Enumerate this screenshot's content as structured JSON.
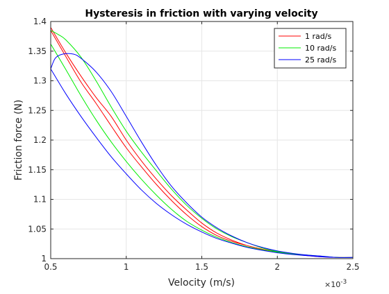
{
  "chart_data": {
    "type": "line",
    "title": "Hysteresis in friction with varying velocity",
    "xlabel": "Velocity (m/s)",
    "ylabel": "Friction force (N)",
    "x_exponent_label": "×10",
    "x_exponent_power": "-3",
    "xlim": [
      0.5,
      2.5
    ],
    "ylim": [
      1.0,
      1.4
    ],
    "x_ticks": [
      0.5,
      1,
      1.5,
      2,
      2.5
    ],
    "x_tick_labels": [
      "0.5",
      "1",
      "1.5",
      "2",
      "2.5"
    ],
    "y_ticks": [
      1.0,
      1.05,
      1.1,
      1.15,
      1.2,
      1.25,
      1.3,
      1.35,
      1.4
    ],
    "y_tick_labels": [
      "1",
      "1.05",
      "1.1",
      "1.15",
      "1.2",
      "1.25",
      "1.3",
      "1.35",
      "1.4"
    ],
    "grid": true,
    "legend_position": "top-right",
    "series": [
      {
        "name": "1 rad/s",
        "color": "#ff0000",
        "upper": {
          "x": [
            0.5,
            0.6,
            0.7,
            0.8,
            0.9,
            1.0,
            1.1,
            1.2,
            1.3,
            1.4,
            1.5,
            1.6,
            1.7,
            1.8,
            1.9,
            2.0,
            2.1,
            2.2,
            2.3,
            2.4,
            2.5
          ],
          "y": [
            1.39,
            1.347,
            1.308,
            1.272,
            1.24,
            1.2,
            1.165,
            1.134,
            1.106,
            1.082,
            1.06,
            1.043,
            1.031,
            1.022,
            1.016,
            1.011,
            1.008,
            1.005,
            1.003,
            1.002,
            1.002
          ]
        },
        "lower": {
          "x": [
            2.5,
            2.4,
            2.3,
            2.2,
            2.1,
            2.0,
            1.9,
            1.8,
            1.7,
            1.6,
            1.5,
            1.4,
            1.3,
            1.2,
            1.1,
            1.0,
            0.9,
            0.8,
            0.7,
            0.6,
            0.5
          ],
          "y": [
            1.002,
            1.002,
            1.003,
            1.005,
            1.008,
            1.011,
            1.016,
            1.022,
            1.029,
            1.039,
            1.054,
            1.074,
            1.098,
            1.125,
            1.155,
            1.187,
            1.224,
            1.262,
            1.298,
            1.341,
            1.385
          ]
        }
      },
      {
        "name": "10 rad/s",
        "color": "#00ee00",
        "upper": {
          "x": [
            0.5,
            0.55,
            0.6,
            0.7,
            0.8,
            0.9,
            1.0,
            1.1,
            1.2,
            1.3,
            1.4,
            1.5,
            1.6,
            1.7,
            1.8,
            1.9,
            2.0,
            2.1,
            2.2,
            2.3,
            2.4,
            2.5
          ],
          "y": [
            1.385,
            1.378,
            1.369,
            1.34,
            1.3,
            1.256,
            1.215,
            1.18,
            1.148,
            1.117,
            1.09,
            1.068,
            1.05,
            1.037,
            1.027,
            1.018,
            1.012,
            1.008,
            1.006,
            1.004,
            1.002,
            1.002
          ]
        },
        "lower": {
          "x": [
            2.5,
            2.4,
            2.3,
            2.2,
            2.1,
            2.0,
            1.9,
            1.8,
            1.7,
            1.6,
            1.5,
            1.4,
            1.3,
            1.2,
            1.1,
            1.0,
            0.9,
            0.8,
            0.7,
            0.6,
            0.5
          ],
          "y": [
            1.002,
            1.002,
            1.004,
            1.006,
            1.008,
            1.011,
            1.015,
            1.02,
            1.027,
            1.036,
            1.048,
            1.063,
            1.083,
            1.107,
            1.134,
            1.164,
            1.197,
            1.234,
            1.275,
            1.319,
            1.362
          ]
        }
      },
      {
        "name": "25 rad/s",
        "color": "#0000ff",
        "upper": {
          "x": [
            0.5,
            0.53,
            0.58,
            0.65,
            0.7,
            0.8,
            0.9,
            1.0,
            1.1,
            1.2,
            1.3,
            1.4,
            1.5,
            1.6,
            1.7,
            1.8,
            1.9,
            2.0,
            2.1,
            2.2,
            2.3,
            2.4,
            2.5
          ],
          "y": [
            1.32,
            1.338,
            1.345,
            1.345,
            1.338,
            1.315,
            1.282,
            1.24,
            1.197,
            1.157,
            1.122,
            1.094,
            1.07,
            1.052,
            1.038,
            1.027,
            1.019,
            1.013,
            1.009,
            1.006,
            1.004,
            1.002,
            1.002
          ]
        },
        "lower": {
          "x": [
            2.5,
            2.4,
            2.3,
            2.2,
            2.1,
            2.0,
            1.9,
            1.8,
            1.7,
            1.6,
            1.5,
            1.4,
            1.3,
            1.2,
            1.1,
            1.0,
            0.9,
            0.8,
            0.7,
            0.6,
            0.5
          ],
          "y": [
            1.002,
            1.002,
            1.003,
            1.005,
            1.007,
            1.01,
            1.014,
            1.019,
            1.026,
            1.034,
            1.045,
            1.058,
            1.074,
            1.093,
            1.116,
            1.143,
            1.172,
            1.205,
            1.24,
            1.278,
            1.32
          ]
        }
      }
    ]
  }
}
